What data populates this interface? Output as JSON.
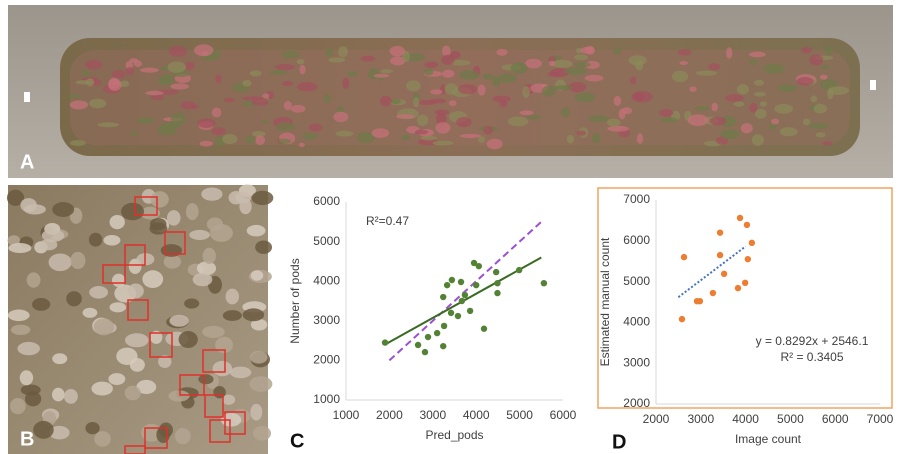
{
  "panels": [
    {
      "label": "A"
    },
    {
      "label": "B"
    }
  ],
  "chart_data": [
    {
      "type": "scatter",
      "panel_label": "C",
      "xlabel": "Pred_pods",
      "ylabel": "Number of pods",
      "annotation": "R²=0.47",
      "xlim": [
        1000,
        6000
      ],
      "ylim": [
        1000,
        6000
      ],
      "xticks": [
        1000,
        2000,
        3000,
        4000,
        5000,
        6000
      ],
      "yticks": [
        1000,
        2000,
        3000,
        4000,
        5000,
        6000
      ],
      "color": "#548235",
      "x": [
        1900,
        2660,
        2820,
        2890,
        3100,
        3240,
        3260,
        3240,
        3330,
        3440,
        3420,
        3580,
        3670,
        3740,
        3650,
        3860,
        3950,
        4060,
        4000,
        4180,
        4460,
        4490,
        4490,
        4990,
        5560
      ],
      "y": [
        2450,
        2390,
        2210,
        2590,
        2690,
        2360,
        2870,
        3600,
        3900,
        4030,
        3200,
        3120,
        3500,
        3650,
        3980,
        3250,
        4460,
        4380,
        3900,
        2800,
        4230,
        3950,
        3700,
        4280,
        3950
      ],
      "trendline": {
        "color": "#3a6b22",
        "style": "solid",
        "x": [
          1900,
          5500
        ],
        "y": [
          2400,
          4600
        ]
      },
      "reference_line": {
        "color": "#9b4fd1",
        "style": "dashed",
        "x": [
          2000,
          5500
        ],
        "y": [
          2000,
          5500
        ]
      },
      "border": false
    },
    {
      "type": "scatter",
      "panel_label": "D",
      "xlabel": "Image count",
      "ylabel": "Estimated manual count",
      "annotation": [
        "y = 0.8292x + 2546.1",
        "R² = 0.3405"
      ],
      "xlim": [
        2000,
        7000
      ],
      "ylim": [
        2000,
        7000
      ],
      "xticks": [
        2000,
        3000,
        4000,
        5000,
        6000,
        7000
      ],
      "yticks": [
        2000,
        3000,
        4000,
        5000,
        6000,
        7000
      ],
      "color": "#ed7d31",
      "x": [
        2625,
        2580,
        2915,
        2980,
        3270,
        3430,
        3430,
        3520,
        3875,
        4030,
        3830,
        3990,
        4050,
        4140
      ],
      "y": [
        5600,
        4080,
        4520,
        4520,
        4720,
        6200,
        5650,
        5190,
        6560,
        6390,
        4840,
        4970,
        5550,
        5950
      ],
      "trendline": {
        "color": "#4472c4",
        "style": "dotted",
        "x": [
          2500,
          4000
        ],
        "y": [
          4619,
          5863
        ]
      },
      "border": "#f0a460"
    }
  ]
}
